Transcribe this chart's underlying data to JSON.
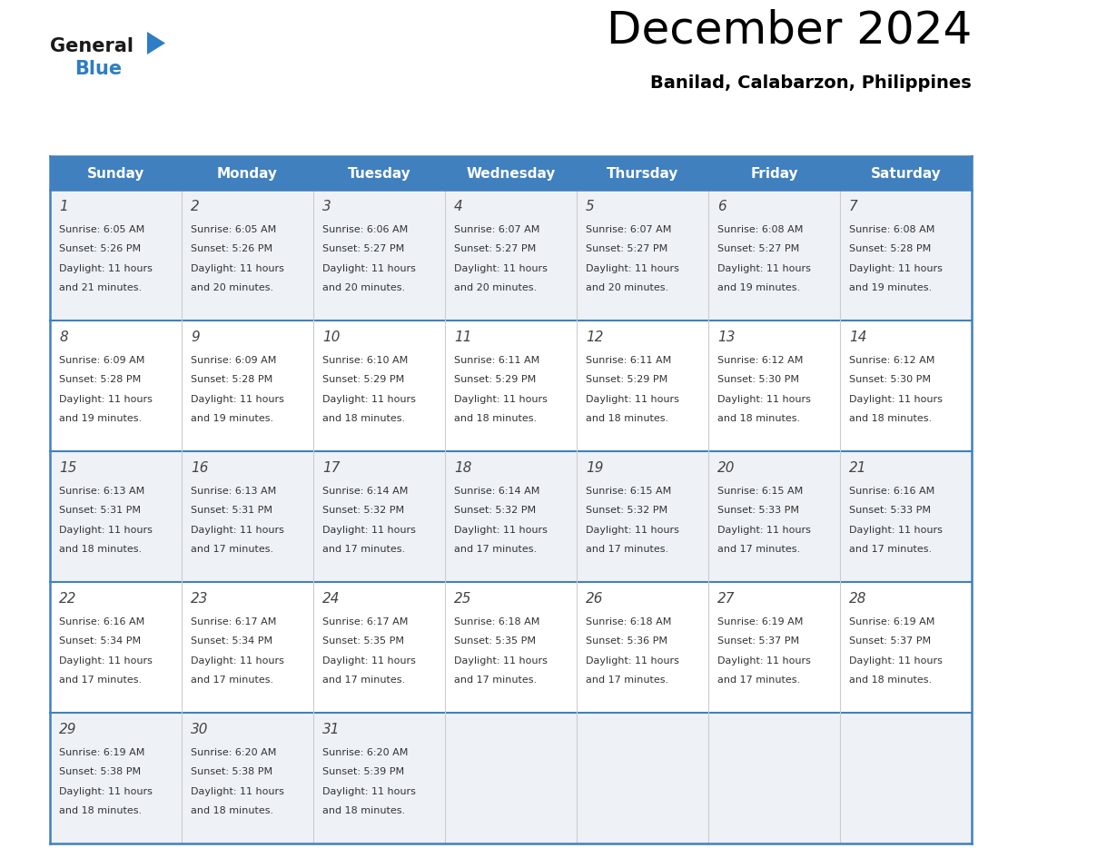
{
  "title": "December 2024",
  "subtitle": "Banilad, Calabarzon, Philippines",
  "header_bg_color": "#4080bf",
  "header_text_color": "#ffffff",
  "cell_bg_color_odd": "#eef2f7",
  "cell_bg_color_even": "#ffffff",
  "days_of_week": [
    "Sunday",
    "Monday",
    "Tuesday",
    "Wednesday",
    "Thursday",
    "Friday",
    "Saturday"
  ],
  "grid_line_color": "#4080bf",
  "text_color": "#333333",
  "day_num_color": "#444444",
  "logo_general_color": "#1a1a1a",
  "logo_blue_color": "#2e7dc5",
  "calendar": [
    [
      {
        "day": 1,
        "sunrise": "6:05 AM",
        "sunset": "5:26 PM",
        "daylight_hours": 11,
        "daylight_minutes": 21
      },
      {
        "day": 2,
        "sunrise": "6:05 AM",
        "sunset": "5:26 PM",
        "daylight_hours": 11,
        "daylight_minutes": 20
      },
      {
        "day": 3,
        "sunrise": "6:06 AM",
        "sunset": "5:27 PM",
        "daylight_hours": 11,
        "daylight_minutes": 20
      },
      {
        "day": 4,
        "sunrise": "6:07 AM",
        "sunset": "5:27 PM",
        "daylight_hours": 11,
        "daylight_minutes": 20
      },
      {
        "day": 5,
        "sunrise": "6:07 AM",
        "sunset": "5:27 PM",
        "daylight_hours": 11,
        "daylight_minutes": 20
      },
      {
        "day": 6,
        "sunrise": "6:08 AM",
        "sunset": "5:27 PM",
        "daylight_hours": 11,
        "daylight_minutes": 19
      },
      {
        "day": 7,
        "sunrise": "6:08 AM",
        "sunset": "5:28 PM",
        "daylight_hours": 11,
        "daylight_minutes": 19
      }
    ],
    [
      {
        "day": 8,
        "sunrise": "6:09 AM",
        "sunset": "5:28 PM",
        "daylight_hours": 11,
        "daylight_minutes": 19
      },
      {
        "day": 9,
        "sunrise": "6:09 AM",
        "sunset": "5:28 PM",
        "daylight_hours": 11,
        "daylight_minutes": 19
      },
      {
        "day": 10,
        "sunrise": "6:10 AM",
        "sunset": "5:29 PM",
        "daylight_hours": 11,
        "daylight_minutes": 18
      },
      {
        "day": 11,
        "sunrise": "6:11 AM",
        "sunset": "5:29 PM",
        "daylight_hours": 11,
        "daylight_minutes": 18
      },
      {
        "day": 12,
        "sunrise": "6:11 AM",
        "sunset": "5:29 PM",
        "daylight_hours": 11,
        "daylight_minutes": 18
      },
      {
        "day": 13,
        "sunrise": "6:12 AM",
        "sunset": "5:30 PM",
        "daylight_hours": 11,
        "daylight_minutes": 18
      },
      {
        "day": 14,
        "sunrise": "6:12 AM",
        "sunset": "5:30 PM",
        "daylight_hours": 11,
        "daylight_minutes": 18
      }
    ],
    [
      {
        "day": 15,
        "sunrise": "6:13 AM",
        "sunset": "5:31 PM",
        "daylight_hours": 11,
        "daylight_minutes": 18
      },
      {
        "day": 16,
        "sunrise": "6:13 AM",
        "sunset": "5:31 PM",
        "daylight_hours": 11,
        "daylight_minutes": 17
      },
      {
        "day": 17,
        "sunrise": "6:14 AM",
        "sunset": "5:32 PM",
        "daylight_hours": 11,
        "daylight_minutes": 17
      },
      {
        "day": 18,
        "sunrise": "6:14 AM",
        "sunset": "5:32 PM",
        "daylight_hours": 11,
        "daylight_minutes": 17
      },
      {
        "day": 19,
        "sunrise": "6:15 AM",
        "sunset": "5:32 PM",
        "daylight_hours": 11,
        "daylight_minutes": 17
      },
      {
        "day": 20,
        "sunrise": "6:15 AM",
        "sunset": "5:33 PM",
        "daylight_hours": 11,
        "daylight_minutes": 17
      },
      {
        "day": 21,
        "sunrise": "6:16 AM",
        "sunset": "5:33 PM",
        "daylight_hours": 11,
        "daylight_minutes": 17
      }
    ],
    [
      {
        "day": 22,
        "sunrise": "6:16 AM",
        "sunset": "5:34 PM",
        "daylight_hours": 11,
        "daylight_minutes": 17
      },
      {
        "day": 23,
        "sunrise": "6:17 AM",
        "sunset": "5:34 PM",
        "daylight_hours": 11,
        "daylight_minutes": 17
      },
      {
        "day": 24,
        "sunrise": "6:17 AM",
        "sunset": "5:35 PM",
        "daylight_hours": 11,
        "daylight_minutes": 17
      },
      {
        "day": 25,
        "sunrise": "6:18 AM",
        "sunset": "5:35 PM",
        "daylight_hours": 11,
        "daylight_minutes": 17
      },
      {
        "day": 26,
        "sunrise": "6:18 AM",
        "sunset": "5:36 PM",
        "daylight_hours": 11,
        "daylight_minutes": 17
      },
      {
        "day": 27,
        "sunrise": "6:19 AM",
        "sunset": "5:37 PM",
        "daylight_hours": 11,
        "daylight_minutes": 17
      },
      {
        "day": 28,
        "sunrise": "6:19 AM",
        "sunset": "5:37 PM",
        "daylight_hours": 11,
        "daylight_minutes": 18
      }
    ],
    [
      {
        "day": 29,
        "sunrise": "6:19 AM",
        "sunset": "5:38 PM",
        "daylight_hours": 11,
        "daylight_minutes": 18
      },
      {
        "day": 30,
        "sunrise": "6:20 AM",
        "sunset": "5:38 PM",
        "daylight_hours": 11,
        "daylight_minutes": 18
      },
      {
        "day": 31,
        "sunrise": "6:20 AM",
        "sunset": "5:39 PM",
        "daylight_hours": 11,
        "daylight_minutes": 18
      },
      null,
      null,
      null,
      null
    ]
  ]
}
